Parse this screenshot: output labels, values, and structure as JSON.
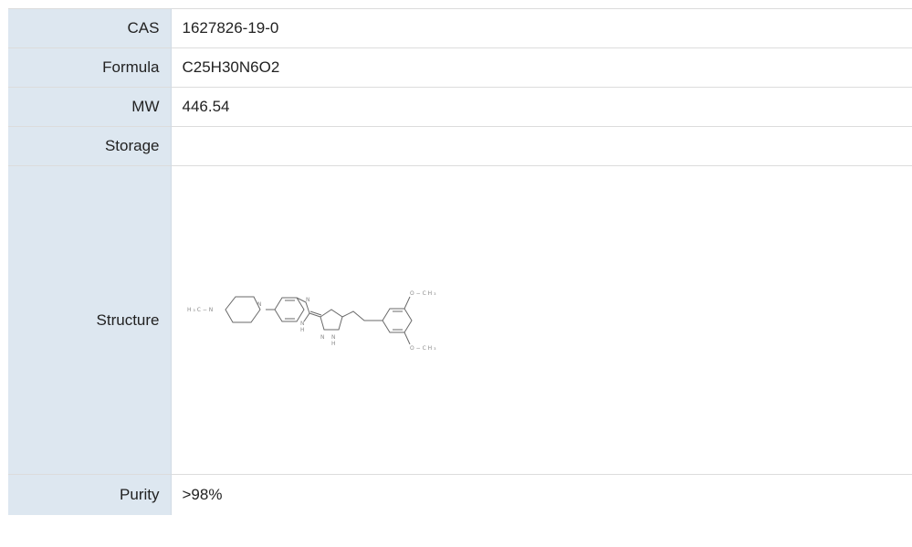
{
  "rows": [
    {
      "label": "CAS",
      "value": "1627826-19-0"
    },
    {
      "label": "Formula",
      "value": "C25H30N6O2"
    },
    {
      "label": "MW",
      "value": "446.54"
    },
    {
      "label": "Storage",
      "value": ""
    },
    {
      "label": "Structure",
      "value": ""
    },
    {
      "label": "Purity",
      "value": ">98%"
    }
  ],
  "structure": {
    "atom_labels": {
      "methyl_n": "H ₃ C − N",
      "n_pip": "N",
      "n_bzim_1": "N",
      "n_bzim_2": "N",
      "h_bzim": "H",
      "n_pyr_1": "N",
      "n_pyr_2": "N",
      "h_pyr": "H",
      "ome_top": "O − C H ₃",
      "ome_bottom": "O − C H ₃"
    }
  },
  "colors": {
    "label_bg": "#dde7f0",
    "border": "#dcdcdc"
  }
}
